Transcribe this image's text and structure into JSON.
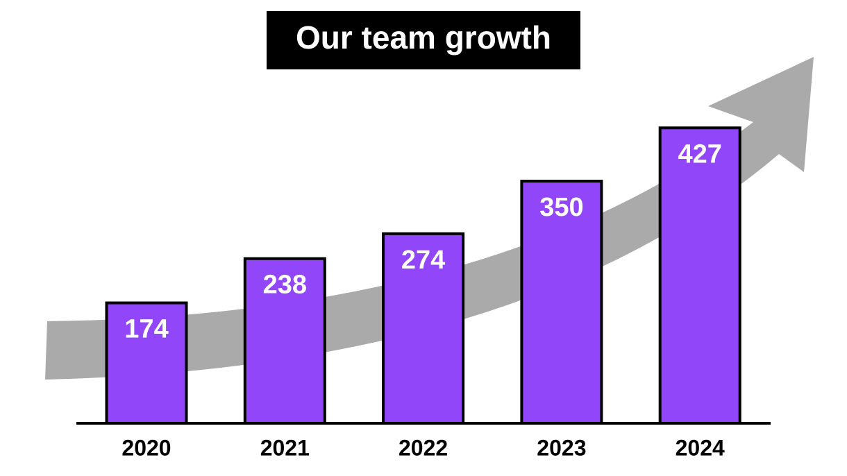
{
  "chart_data": {
    "type": "bar",
    "title": "Our team growth",
    "categories": [
      "2020",
      "2021",
      "2022",
      "2023",
      "2024"
    ],
    "values": [
      174,
      238,
      274,
      350,
      427
    ],
    "color": "#9146fa"
  }
}
